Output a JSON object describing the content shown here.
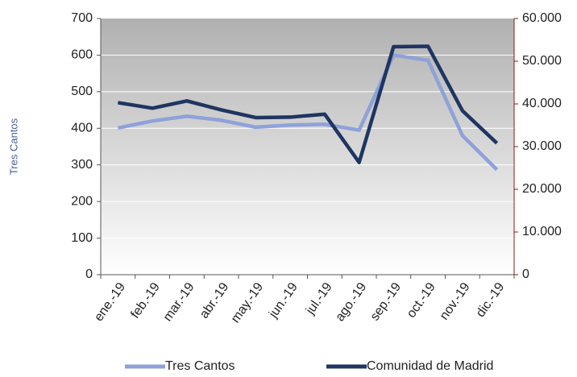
{
  "chart_data": {
    "type": "line",
    "y_label": "Tres Cantos",
    "categories": [
      "ene.-19",
      "feb.-19",
      "mar.-19",
      "abr.-19",
      "may.-19",
      "jun.-19",
      "jul.-19",
      "ago.-19",
      "sep.-19",
      "oct.-19",
      "nov.-19",
      "dic.-19"
    ],
    "series": [
      {
        "name": "Tres Cantos",
        "color": "#8ea1d9",
        "values": [
          401,
          420,
          433,
          422,
          403,
          409,
          411,
          395,
          600,
          586,
          380,
          287
        ]
      },
      {
        "name": "Comunidad de Madrid",
        "color": "#1f3561",
        "axis": "y2",
        "values": [
          40300,
          39000,
          40700,
          38600,
          36800,
          36900,
          37600,
          26300,
          53400,
          53500,
          38400,
          30800
        ]
      }
    ],
    "ylim": [
      0,
      700
    ],
    "yticks": [
      0,
      100,
      200,
      300,
      400,
      500,
      600,
      700
    ],
    "y2lim": [
      0,
      60000
    ],
    "y2ticks": [
      0,
      {
        "value": 10000,
        "label": "10.000"
      },
      {
        "value": 20000,
        "label": "20.000"
      },
      {
        "value": 30000,
        "label": "30.000"
      },
      {
        "value": 40000,
        "label": "40.000"
      },
      {
        "value": 50000,
        "label": "50.000"
      },
      {
        "value": 60000,
        "label": "60.000"
      }
    ],
    "grid": true,
    "legend": "bottom"
  }
}
